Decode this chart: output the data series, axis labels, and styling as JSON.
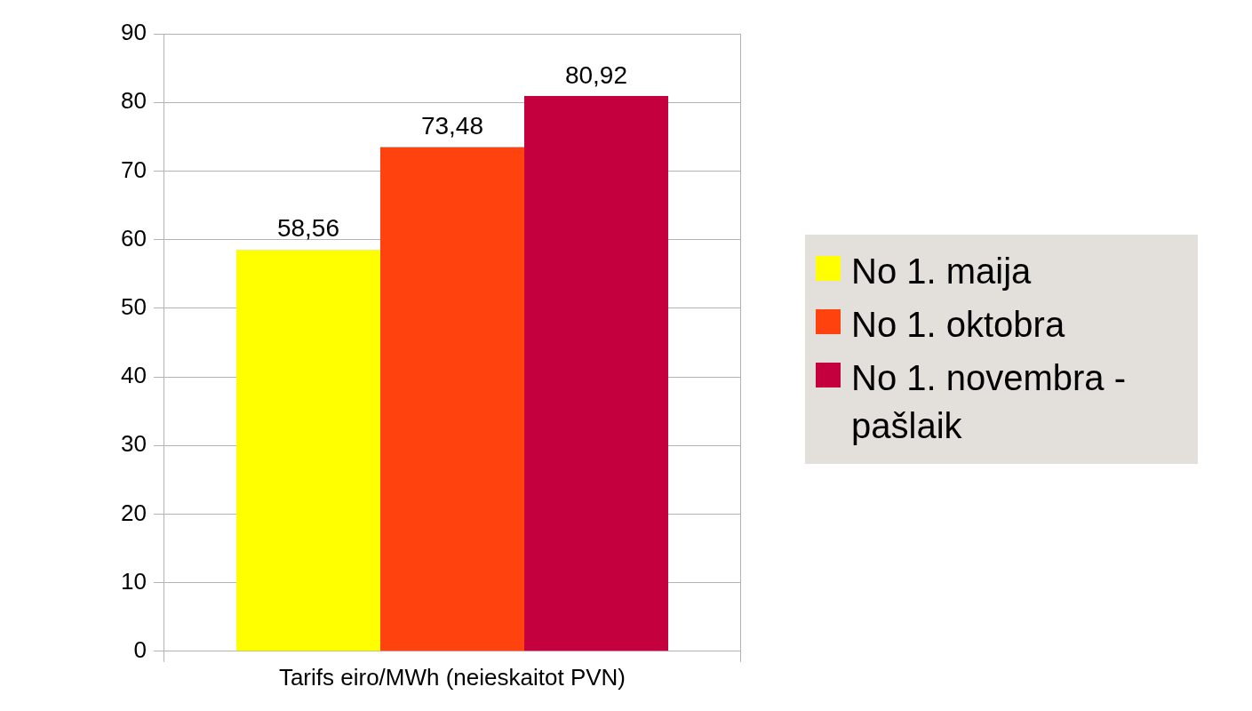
{
  "chart_data": {
    "type": "bar",
    "categories": [
      "Tarifs eiro/MWh (neieskaitot PVN)"
    ],
    "series": [
      {
        "name": "No 1. maija",
        "color": "#ffff00",
        "values": [
          58.56
        ],
        "value_labels": [
          "58,56"
        ]
      },
      {
        "name": "No 1. oktobra",
        "color": "#ff420e",
        "values": [
          73.48
        ],
        "value_labels": [
          "73,48"
        ]
      },
      {
        "name": "No 1. novembra - pašlaik",
        "color": "#c5003e",
        "values": [
          80.92
        ],
        "value_labels": [
          "80,92"
        ]
      }
    ],
    "ylim": [
      0,
      90
    ],
    "yticks": [
      0,
      10,
      20,
      30,
      40,
      50,
      60,
      70,
      80,
      90
    ],
    "grid": true,
    "legend": "right"
  }
}
